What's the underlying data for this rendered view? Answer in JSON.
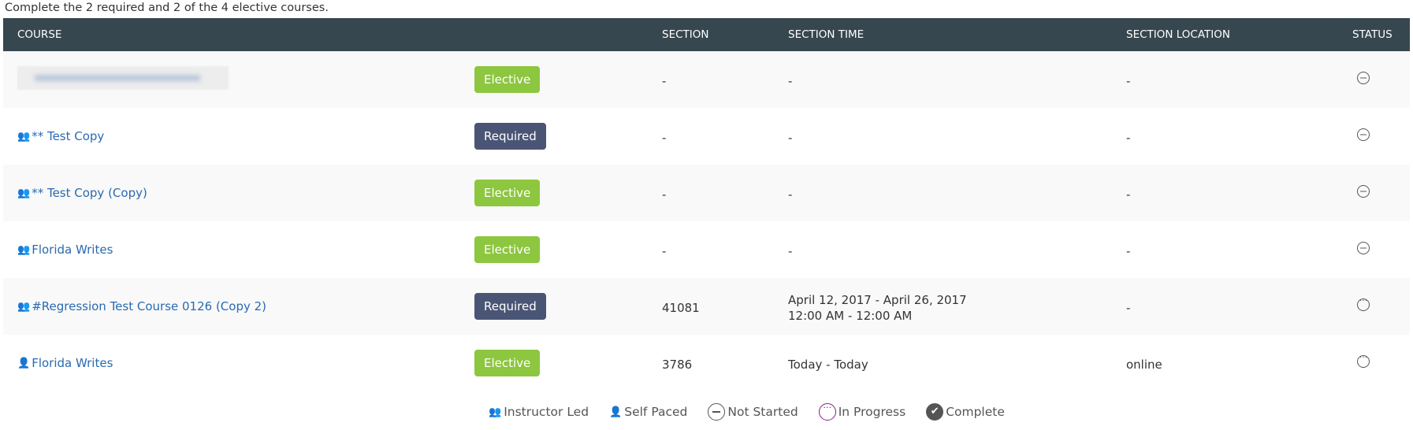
{
  "intro": "Complete the 2 required and 2 of the 4 elective courses.",
  "headers": [
    "COURSE",
    "SECTION",
    "SECTION TIME",
    "SECTION LOCATION",
    "STATUS"
  ],
  "rows": [
    {
      "course": "",
      "type": "",
      "badge": "Elective",
      "section": "-",
      "time": "-",
      "time2": "",
      "location": "-",
      "status": "not-started"
    },
    {
      "course": "** Test Copy",
      "type": "instructor-led",
      "badge": "Required",
      "section": "-",
      "time": "-",
      "time2": "",
      "location": "-",
      "status": "not-started"
    },
    {
      "course": "** Test Copy (Copy)",
      "type": "instructor-led",
      "badge": "Elective",
      "section": "-",
      "time": "-",
      "time2": "",
      "location": "-",
      "status": "not-started"
    },
    {
      "course": "Florida Writes",
      "type": "instructor-led",
      "badge": "Elective",
      "section": "-",
      "time": "-",
      "time2": "",
      "location": "-",
      "status": "not-started"
    },
    {
      "course": "#Regression Test Course 0126 (Copy 2)",
      "type": "instructor-led",
      "badge": "Required",
      "section": "41081",
      "time": "April 12, 2017 - April 26, 2017",
      "time2": "12:00 AM - 12:00 AM",
      "location": "-",
      "status": "in-progress"
    },
    {
      "course": "Florida Writes",
      "type": "self-paced",
      "badge": "Elective",
      "section": "3786",
      "time": "Today - Today",
      "time2": "",
      "location": "online",
      "status": "in-progress"
    }
  ],
  "legend": {
    "instructor_led": "Instructor Led",
    "self_paced": "Self Paced",
    "not_started": "Not Started",
    "in_progress": "In Progress",
    "complete": "Complete"
  },
  "colors": {
    "header": "#37474f",
    "elective": "#8dc63f",
    "required": "#4a5575",
    "link": "#2a6ab0",
    "in_progress": "#8b1c8b"
  }
}
